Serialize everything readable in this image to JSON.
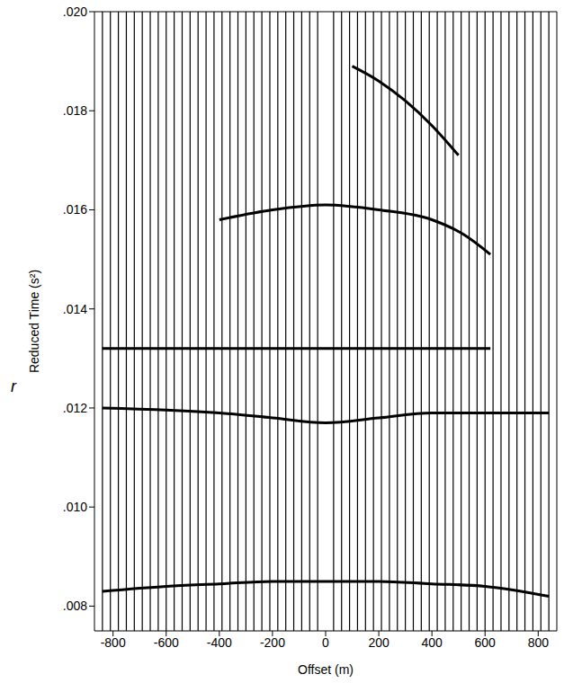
{
  "chart_data": {
    "type": "line",
    "x_label": "Offset (m)",
    "y_label": "Reduced Time (s²)",
    "annotation": "r",
    "color": "#000000",
    "grid": false,
    "legend": null,
    "xlim": [
      -870,
      870
    ],
    "xticks": [
      -800,
      -600,
      -400,
      -200,
      0,
      200,
      400,
      600,
      800
    ],
    "ylim": [
      0.0075,
      0.02
    ],
    "yticks": [
      {
        "value": 0.008,
        "label": ".008"
      },
      {
        "value": 0.01,
        "label": ".010"
      },
      {
        "value": 0.012,
        "label": ".012"
      },
      {
        "value": 0.014,
        "label": ".014"
      },
      {
        "value": 0.016,
        "label": ".016"
      },
      {
        "value": 0.018,
        "label": ".018"
      },
      {
        "value": 0.02,
        "label": ".020"
      }
    ],
    "trace_offsets": [
      -840,
      -810,
      -780,
      -750,
      -720,
      -690,
      -660,
      -630,
      -600,
      -570,
      -540,
      -510,
      -480,
      -450,
      -420,
      -390,
      -360,
      -330,
      -300,
      -270,
      -240,
      -210,
      -180,
      -150,
      -120,
      -90,
      -60,
      -30,
      30,
      60,
      90,
      120,
      150,
      180,
      210,
      240,
      270,
      300,
      330,
      360,
      390,
      420,
      450,
      480,
      510,
      540,
      570,
      600,
      630,
      660,
      690,
      720,
      750,
      780,
      810,
      840
    ],
    "events": [
      {
        "x": [
          -840,
          -600,
          -400,
          -200,
          0,
          200,
          400,
          600,
          840
        ],
        "y": [
          0.0083,
          0.0084,
          0.00845,
          0.0085,
          0.0085,
          0.0085,
          0.00845,
          0.0084,
          0.0082
        ]
      },
      {
        "x": [
          -840,
          -400,
          -200,
          0,
          200,
          400,
          840
        ],
        "y": [
          0.012,
          0.0119,
          0.0118,
          0.0117,
          0.0118,
          0.0119,
          0.0119
        ]
      },
      {
        "x": [
          -840,
          -400,
          0,
          400,
          500,
          620
        ],
        "y": [
          0.0132,
          0.0132,
          0.0132,
          0.0132,
          0.0132,
          0.0132
        ]
      },
      {
        "x": [
          -400,
          -200,
          0,
          200,
          400,
          520,
          620
        ],
        "y": [
          0.0158,
          0.016,
          0.0161,
          0.016,
          0.0158,
          0.0155,
          0.0151
        ]
      },
      {
        "x": [
          100,
          200,
          300,
          400,
          500
        ],
        "y": [
          0.0189,
          0.0186,
          0.0182,
          0.0177,
          0.0171
        ]
      }
    ]
  }
}
